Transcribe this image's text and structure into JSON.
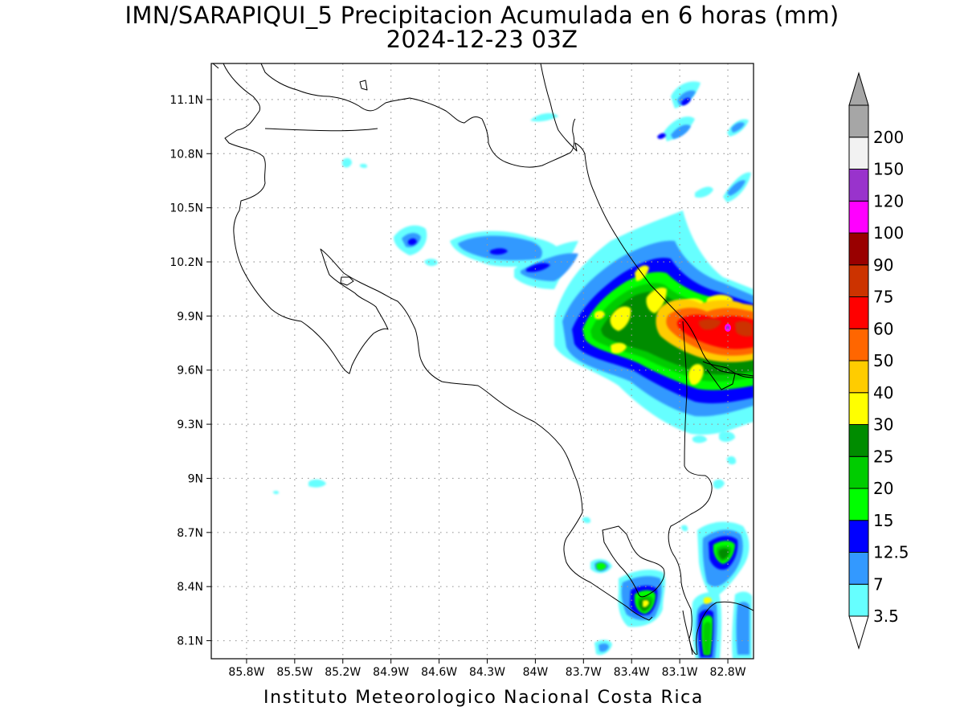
{
  "title": {
    "line1": "IMN/SARAPIQUI_5 Precipitacion Acumulada en 6 horas (mm)",
    "line2": "2024-12-23 03Z"
  },
  "footer": "Instituto Meteorologico Nacional Costa Rica",
  "map": {
    "lon_range": [
      -86.02,
      -82.64
    ],
    "lat_range": [
      8.0,
      11.3
    ],
    "lon_ticks": [
      {
        "value": -85.8,
        "label": "85.8W"
      },
      {
        "value": -85.5,
        "label": "85.5W"
      },
      {
        "value": -85.2,
        "label": "85.2W"
      },
      {
        "value": -84.9,
        "label": "84.9W"
      },
      {
        "value": -84.6,
        "label": "84.6W"
      },
      {
        "value": -84.3,
        "label": "84.3W"
      },
      {
        "value": -84.0,
        "label": "84W"
      },
      {
        "value": -83.7,
        "label": "83.7W"
      },
      {
        "value": -83.4,
        "label": "83.4W"
      },
      {
        "value": -83.1,
        "label": "83.1W"
      },
      {
        "value": -82.8,
        "label": "82.8W"
      }
    ],
    "lat_ticks": [
      {
        "value": 11.1,
        "label": "11.1N"
      },
      {
        "value": 10.8,
        "label": "10.8N"
      },
      {
        "value": 10.5,
        "label": "10.5N"
      },
      {
        "value": 10.2,
        "label": "10.2N"
      },
      {
        "value": 9.9,
        "label": "9.9N"
      },
      {
        "value": 9.6,
        "label": "9.6N"
      },
      {
        "value": 9.3,
        "label": "9.3N"
      },
      {
        "value": 9.0,
        "label": "9N"
      },
      {
        "value": 8.7,
        "label": "8.7N"
      },
      {
        "value": 8.4,
        "label": "8.4N"
      },
      {
        "value": 8.1,
        "label": "8.1N"
      }
    ],
    "grid": true
  },
  "colorbar": {
    "levels": [
      {
        "label": "3.5",
        "color": "#66ffff"
      },
      {
        "label": "7",
        "color": "#3399ff"
      },
      {
        "label": "12.5",
        "color": "#0000ff"
      },
      {
        "label": "15",
        "color": "#00ff00"
      },
      {
        "label": "20",
        "color": "#00cc00"
      },
      {
        "label": "25",
        "color": "#008c00"
      },
      {
        "label": "30",
        "color": "#ffff00"
      },
      {
        "label": "40",
        "color": "#ffcc00"
      },
      {
        "label": "50",
        "color": "#ff6600"
      },
      {
        "label": "60",
        "color": "#ff0000"
      },
      {
        "label": "75",
        "color": "#cc3300"
      },
      {
        "label": "90",
        "color": "#990000"
      },
      {
        "label": "100",
        "color": "#ff00ff"
      },
      {
        "label": "120",
        "color": "#9933cc"
      },
      {
        "label": "150",
        "color": "#f2f2f2"
      },
      {
        "label": "200",
        "color": "#a6a6a6"
      }
    ],
    "under_color": "#ffffff",
    "over_color": "#a6a6a6"
  },
  "precip_cells": [
    {
      "lon": -82.92,
      "lat": 9.88,
      "rx": 0.16,
      "ry": 0.12,
      "rot": -20,
      "level": 9
    },
    {
      "lon": -82.72,
      "lat": 9.82,
      "rx": 0.1,
      "ry": 0.14,
      "rot": -20,
      "level": 9
    },
    {
      "lon": -82.8,
      "lat": 9.74,
      "rx": 0.1,
      "ry": 0.08,
      "rot": 0,
      "level": 10
    },
    {
      "lon": -82.77,
      "lat": 9.79,
      "rx": 0.02,
      "ry": 0.02,
      "rot": 0,
      "level": 12
    },
    {
      "lon": -83.05,
      "lat": 9.92,
      "rx": 0.06,
      "ry": 0.09,
      "rot": -30,
      "level": 8
    },
    {
      "lon": -83.22,
      "lat": 9.92,
      "rx": 0.05,
      "ry": 0.08,
      "rot": -20,
      "level": 6
    },
    {
      "lon": -83.32,
      "lat": 9.88,
      "rx": 0.04,
      "ry": 0.06,
      "rot": -20,
      "level": 6
    },
    {
      "lon": -82.98,
      "lat": 9.58,
      "rx": 0.03,
      "ry": 0.05,
      "rot": 0,
      "level": 6
    },
    {
      "lon": -83.14,
      "lat": 10.02,
      "rx": 0.03,
      "ry": 0.04,
      "rot": 0,
      "level": 6
    },
    {
      "lon": -83.17,
      "lat": 10.25,
      "rx": 0.02,
      "ry": 0.03,
      "rot": -30,
      "level": 6
    },
    {
      "lon": -83.13,
      "lat": 8.35,
      "rx": 0.03,
      "ry": 0.04,
      "rot": 0,
      "level": 6
    },
    {
      "lon": -82.78,
      "lat": 8.58,
      "rx": 0.02,
      "ry": 0.02,
      "rot": 0,
      "level": 6
    },
    {
      "lon": -83.42,
      "lat": 9.72,
      "rx": 0.05,
      "ry": 0.04,
      "rot": 0,
      "level": 2
    },
    {
      "lon": -83.67,
      "lat": 10.13,
      "rx": 0.03,
      "ry": 0.02,
      "rot": 0,
      "level": 2
    },
    {
      "lon": -84.0,
      "lat": 10.17,
      "rx": 0.03,
      "ry": 0.02,
      "rot": 0,
      "level": 2
    },
    {
      "lon": -84.28,
      "lat": 10.28,
      "rx": 0.02,
      "ry": 0.015,
      "rot": 0,
      "level": 2
    },
    {
      "lon": -84.6,
      "lat": 10.25,
      "rx": 0.02,
      "ry": 0.015,
      "rot": 0,
      "level": 2
    },
    {
      "lon": -83.03,
      "lat": 11.07,
      "rx": 0.02,
      "ry": 0.02,
      "rot": -30,
      "level": 2
    },
    {
      "lon": -83.12,
      "lat": 10.89,
      "rx": 0.02,
      "ry": 0.02,
      "rot": 0,
      "level": 2
    },
    {
      "lon": -82.79,
      "lat": 8.29,
      "rx": 0.02,
      "ry": 0.02,
      "rot": 0,
      "level": 6
    }
  ]
}
